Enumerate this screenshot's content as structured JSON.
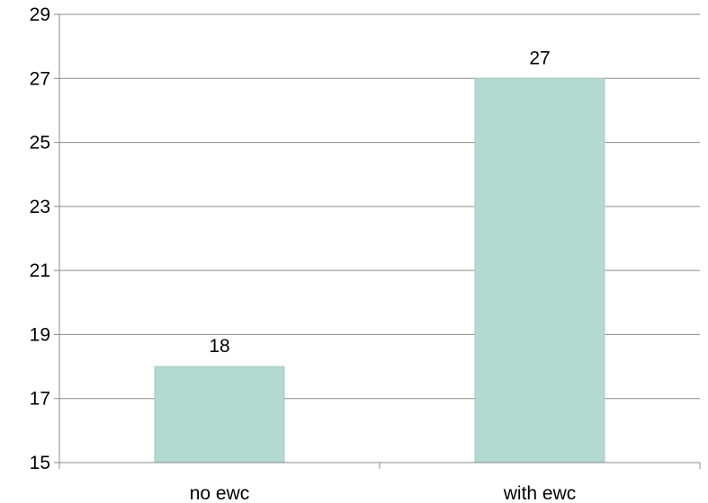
{
  "chart_data": {
    "type": "bar",
    "title": "",
    "xlabel": "",
    "ylabel": "",
    "categories": [
      "no ewc",
      "with ewc"
    ],
    "values": [
      18,
      27
    ],
    "data_labels": [
      "18",
      "27"
    ],
    "ylim": [
      15,
      29
    ],
    "yticks": [
      15,
      17,
      19,
      21,
      23,
      25,
      27,
      29
    ],
    "ytick_labels": [
      "15",
      "17",
      "19",
      "21",
      "23",
      "25",
      "27",
      "29"
    ],
    "grid": true,
    "legend": "none",
    "colors": {
      "bar_fill": "#b3d9d1",
      "bar_stroke": "#a6c9c2",
      "grid": "#8c8c8c",
      "axis": "#8c8c8c",
      "text": "#000000"
    }
  }
}
